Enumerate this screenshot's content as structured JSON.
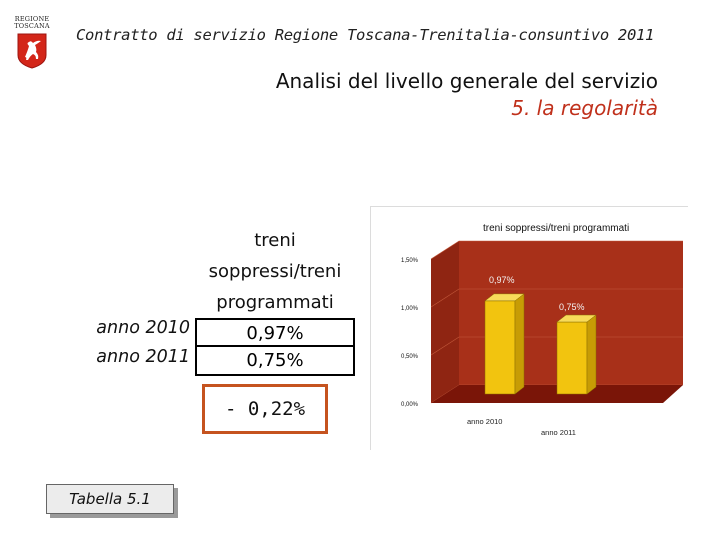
{
  "logo": {
    "line1": "REGIONE",
    "line2": "TOSCANA"
  },
  "header_title": "Contratto di servizio Regione Toscana-Trenitalia-consuntivo 2011",
  "subtitle": {
    "line1": "Analisi del livello generale del servizio",
    "line2": "5. la regolarità"
  },
  "table": {
    "header": [
      "treni",
      "soppressi/treni",
      "programmati"
    ],
    "rows": [
      {
        "label": "anno 2010",
        "value": "0,97%"
      },
      {
        "label": "anno 2011",
        "value": "0,75%"
      }
    ],
    "delta": "- 0,22%"
  },
  "tab_label": "Tabella 5.1",
  "colors": {
    "accent": "#c0301b",
    "wall": "#a83019",
    "floor": "#7a1508",
    "bar": "#f2c40f",
    "delta_border": "#c5531f"
  },
  "chart_data": {
    "type": "bar",
    "title": "treni soppressi/treni programmati",
    "categories": [
      "anno 2010",
      "anno 2011"
    ],
    "values": [
      0.97,
      0.75
    ],
    "data_labels": [
      "0,97%",
      "0,75%"
    ],
    "y_ticks": [
      "0,00%",
      "0,50%",
      "1,00%",
      "1,50%"
    ],
    "y_tick_values": [
      0,
      0.5,
      1.0,
      1.5
    ],
    "ylim": [
      0,
      1.5
    ],
    "style": "3d",
    "legend": "none"
  }
}
